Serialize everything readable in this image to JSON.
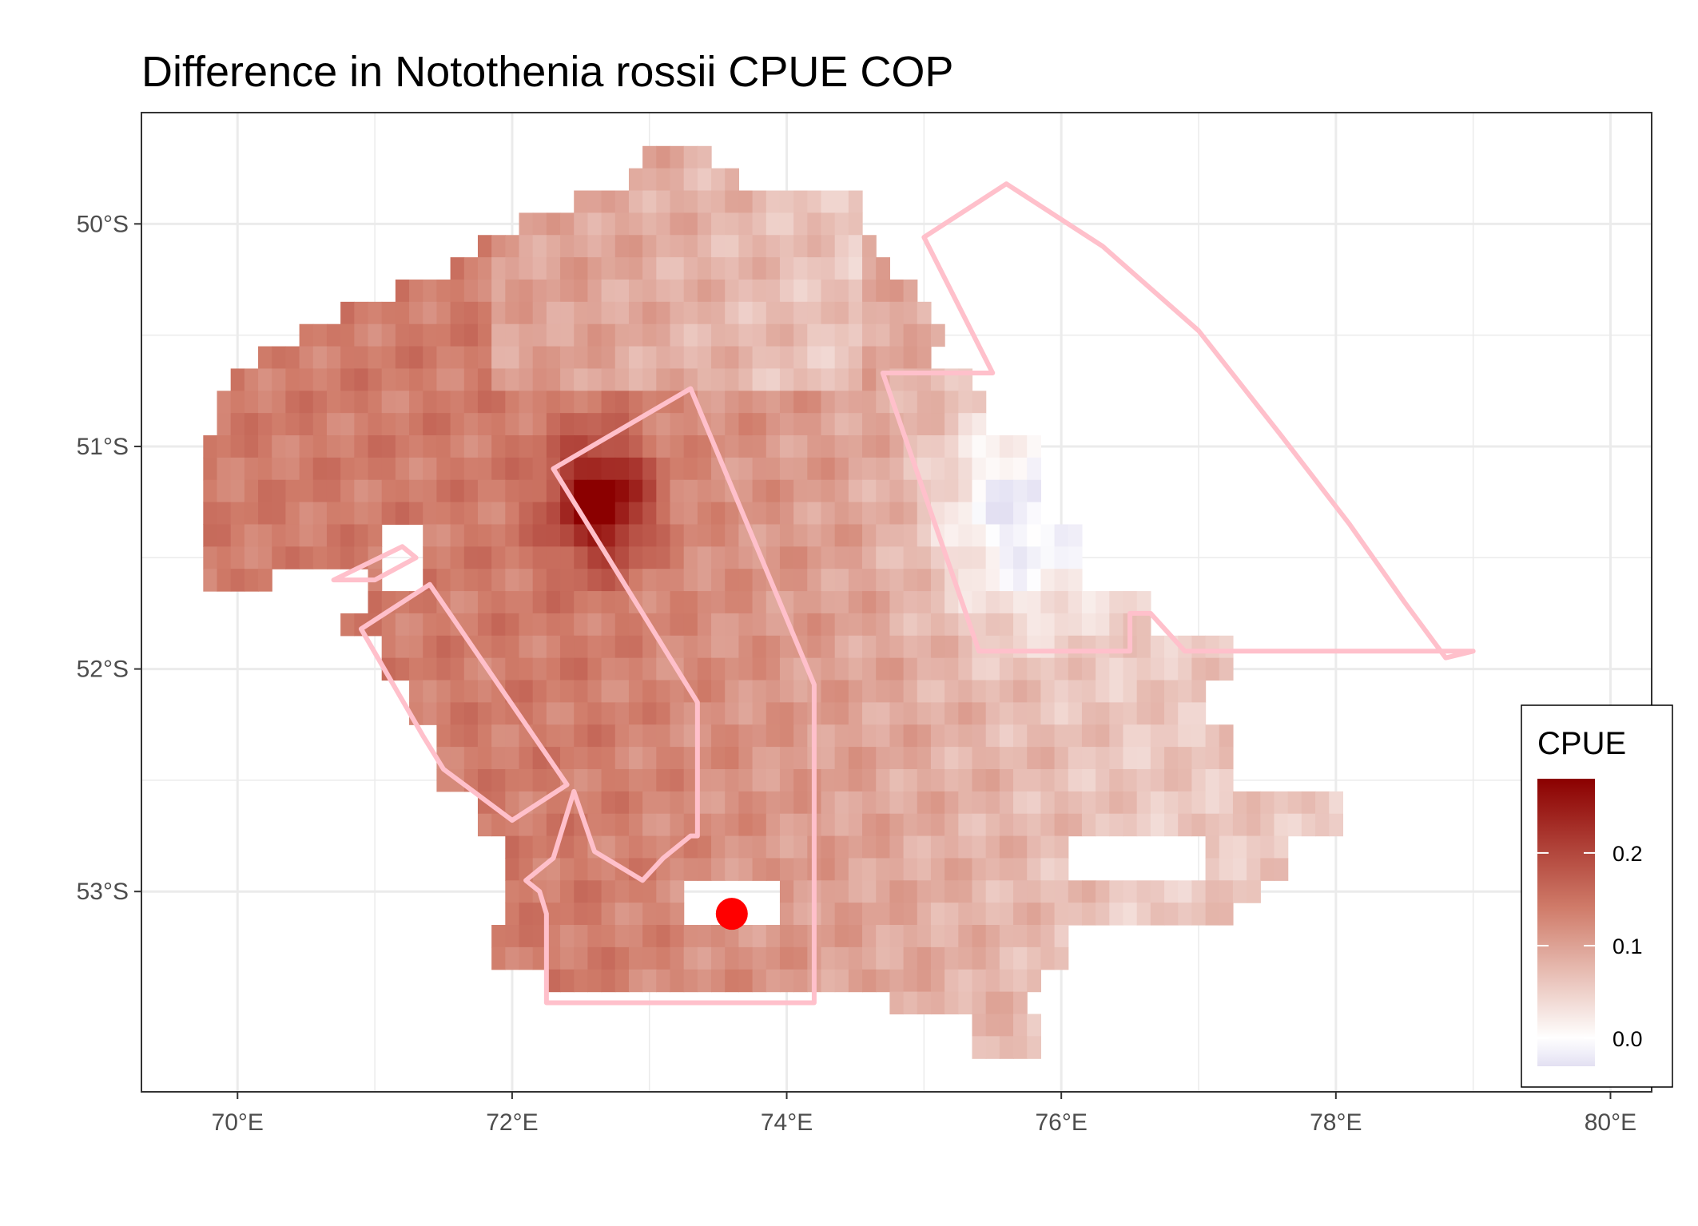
{
  "title": "Difference in  Notothenia rossii CPUE COP",
  "chart_data": {
    "type": "heatmap",
    "title": "Difference in  Notothenia rossii CPUE COP",
    "xlabel": "",
    "ylabel": "",
    "x_axis": {
      "range": [
        69.3,
        80.3
      ],
      "ticks": [
        70,
        72,
        74,
        76,
        78,
        80
      ],
      "tick_labels": [
        "70°E",
        "72°E",
        "74°E",
        "76°E",
        "78°E",
        "80°E"
      ]
    },
    "y_axis": {
      "range": [
        -53.9,
        -49.5
      ],
      "ticks": [
        -50,
        -51,
        -52,
        -53
      ],
      "tick_labels": [
        "50°S",
        "51°S",
        "52°S",
        "53°S"
      ]
    },
    "grid": true,
    "colors": {
      "high": "#8b0000",
      "mid": "#ffffff",
      "low": "#e3e0f2",
      "polygon_outline": "#ffc0cb",
      "point": "#ff0000",
      "gridline": "#ebebeb",
      "panel_border": "#333333"
    },
    "legend": {
      "title": "CPUE",
      "placement": "bottom-right",
      "range": [
        -0.03,
        0.28
      ],
      "breaks": [
        0.0,
        0.1,
        0.2
      ],
      "labels": [
        "0.0",
        "0.1",
        "0.2"
      ]
    },
    "fill_summary": {
      "peak": {
        "lon": 72.65,
        "lat": -51.25,
        "value": 0.28
      },
      "minimum_area": {
        "lon": 75.7,
        "lat": -51.3,
        "value": -0.03
      },
      "typical_west": 0.14,
      "typical_east": 0.06
    },
    "point": {
      "lon": 73.6,
      "lat": -53.1
    },
    "polygons": [
      {
        "name": "northeast-sector",
        "lon": [
          75.0,
          75.6,
          76.3,
          77.0,
          77.6,
          78.1,
          78.5,
          78.8,
          79.0,
          76.9,
          76.65,
          76.5,
          76.5,
          75.4,
          74.7,
          75.5,
          75.0
        ],
        "lat": [
          -50.06,
          -49.82,
          -50.1,
          -50.48,
          -50.95,
          -51.35,
          -51.7,
          -51.95,
          -51.92,
          -51.92,
          -51.75,
          -51.75,
          -51.92,
          -51.92,
          -50.67,
          -50.67,
          -50.06
        ]
      },
      {
        "name": "central-corridor",
        "lon": [
          72.3,
          73.3,
          74.2,
          74.2,
          72.25,
          72.25,
          72.2,
          72.1,
          72.3,
          72.45,
          72.6,
          72.95,
          73.1,
          73.3,
          73.35,
          73.35,
          72.3
        ],
        "lat": [
          -51.1,
          -50.74,
          -52.07,
          -53.5,
          -53.5,
          -53.1,
          -53.0,
          -52.95,
          -52.85,
          -52.55,
          -52.82,
          -52.95,
          -52.85,
          -52.75,
          -52.75,
          -52.15,
          -51.1
        ]
      },
      {
        "name": "western-strip",
        "lon": [
          70.9,
          71.4,
          72.4,
          72.0,
          71.5,
          71.35,
          70.9
        ],
        "lat": [
          -51.82,
          -51.62,
          -52.52,
          -52.68,
          -52.45,
          -52.3,
          -51.82
        ]
      },
      {
        "name": "small-western-wedge",
        "lon": [
          70.7,
          71.2,
          71.3,
          71.0,
          70.7
        ],
        "lat": [
          -51.6,
          -51.45,
          -51.5,
          -51.6,
          -51.6
        ]
      }
    ]
  }
}
